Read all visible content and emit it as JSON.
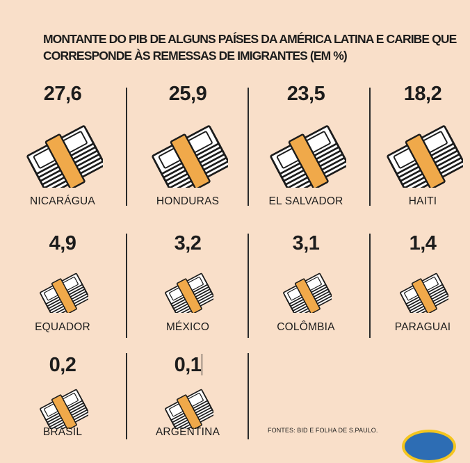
{
  "title_lines": [
    "MONTANTE DO PIB DE ALGUNS PAÍSES DA AMÉRICA LATINA E CARIBE QUE",
    "CORRESPONDE ÀS REMESSAS DE IMIGRANTES (EM %)"
  ],
  "source": "FONTES: BID E FOLHA DE S.PAULO.",
  "colors": {
    "background": "#f9dfc9",
    "band": "#f0a94a",
    "ink": "#1c1c1c",
    "paper": "#ffffff"
  },
  "icon_name": "money-stack-icon",
  "chart_data": {
    "type": "pictogram",
    "title": "MONTANTE DO PIB DE ALGUNS PAÍSES DA AMÉRICA LATINA E CARIBE QUE CORRESPONDE ÀS REMESSAS DE IMIGRANTES (EM %)",
    "categories": [
      "NICARÁGUA",
      "HONDURAS",
      "EL SALVADOR",
      "HAITI",
      "EQUADOR",
      "MÉXICO",
      "COLÔMBIA",
      "PARAGUAI",
      "BRASIL",
      "ARGENTINA"
    ],
    "values": [
      27.6,
      25.9,
      23.5,
      18.2,
      4.9,
      3.2,
      3.1,
      1.4,
      0.2,
      0.1
    ],
    "value_labels": [
      "27,6",
      "25,9",
      "23,5",
      "18,2",
      "4,9",
      "3,2",
      "3,1",
      "1,4",
      "0,2",
      "0,1"
    ],
    "unit": "%"
  }
}
